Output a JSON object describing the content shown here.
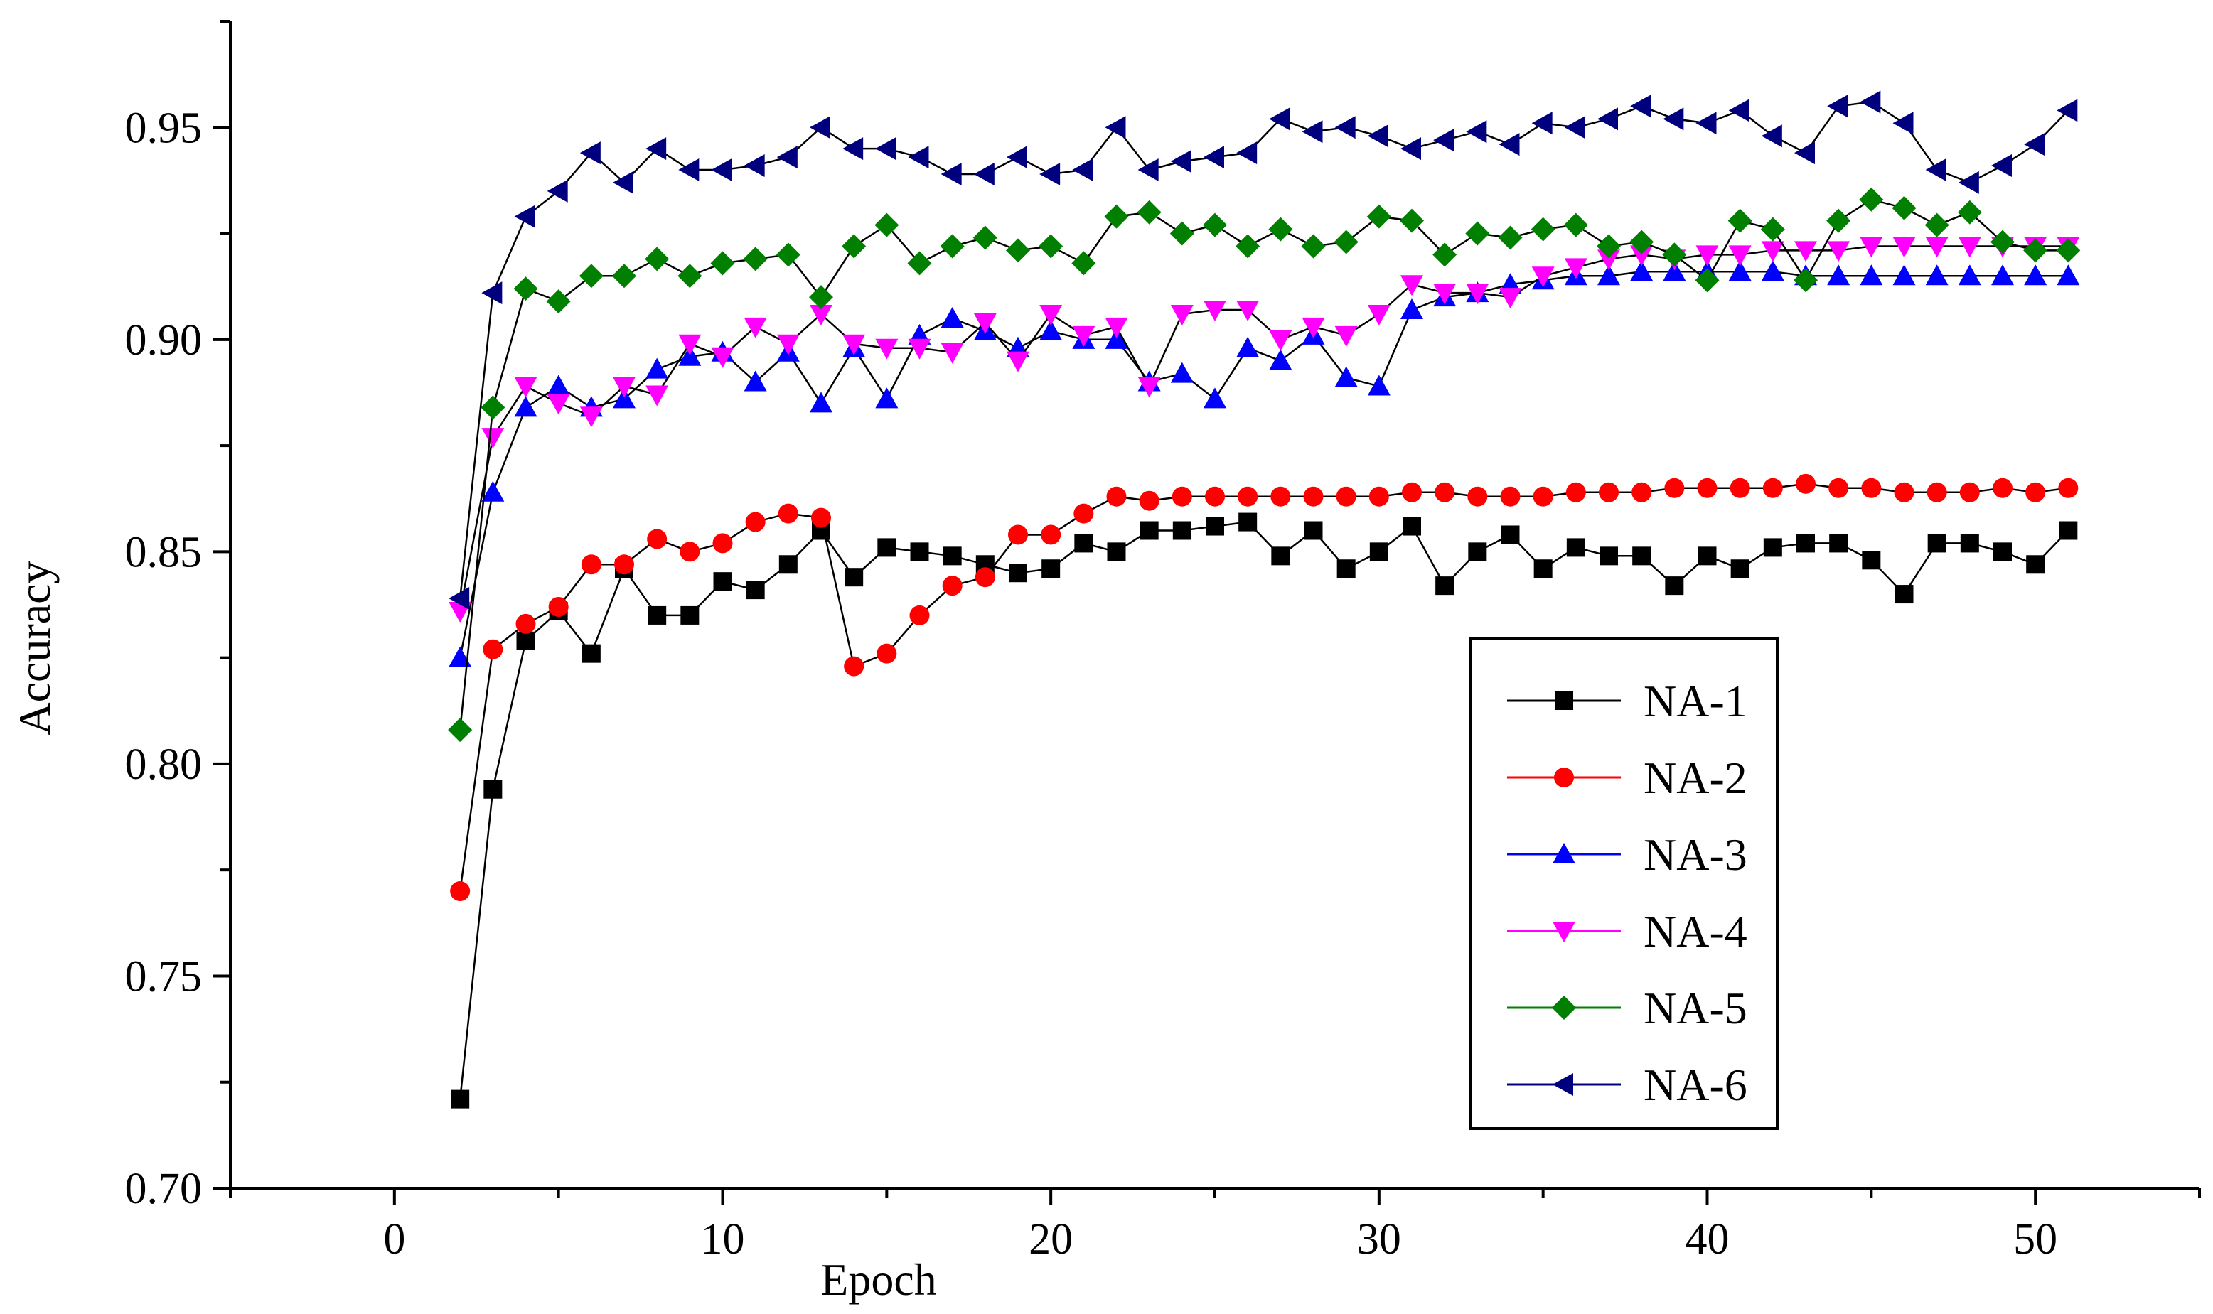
{
  "chart_data": {
    "type": "line",
    "title": "",
    "xlabel": "Epoch",
    "ylabel": "Accuracy",
    "xlim": [
      -5,
      55
    ],
    "ylim": [
      0.7,
      0.975
    ],
    "xticks": [
      0,
      10,
      20,
      30,
      40,
      50
    ],
    "xtick_labels": [
      "0",
      "10",
      "20",
      "30",
      "40",
      "50"
    ],
    "yticks": [
      0.7,
      0.75,
      0.8,
      0.85,
      0.9,
      0.95
    ],
    "ytick_labels": [
      "0.70",
      "0.75",
      "0.80",
      "0.85",
      "0.90",
      "0.95"
    ],
    "grid": false,
    "legend_position": "bottom-right",
    "x": [
      2,
      3,
      4,
      5,
      6,
      7,
      8,
      9,
      10,
      11,
      12,
      13,
      14,
      15,
      16,
      17,
      18,
      19,
      20,
      21,
      22,
      23,
      24,
      25,
      26,
      27,
      28,
      29,
      30,
      31,
      32,
      33,
      34,
      35,
      36,
      37,
      38,
      39,
      40,
      41,
      42,
      43,
      44,
      45,
      46,
      47,
      48,
      49,
      50,
      51
    ],
    "series": [
      {
        "name": "NA-1",
        "color": "#000000",
        "marker": "square",
        "values": [
          0.721,
          0.794,
          0.829,
          0.836,
          0.826,
          0.846,
          0.835,
          0.835,
          0.843,
          0.841,
          0.847,
          0.855,
          0.844,
          0.851,
          0.85,
          0.849,
          0.847,
          0.845,
          0.846,
          0.852,
          0.85,
          0.855,
          0.855,
          0.856,
          0.857,
          0.849,
          0.855,
          0.846,
          0.85,
          0.856,
          0.842,
          0.85,
          0.854,
          0.846,
          0.851,
          0.849,
          0.849,
          0.842,
          0.849,
          0.846,
          0.851,
          0.852,
          0.852,
          0.848,
          0.84,
          0.852,
          0.852,
          0.85,
          0.847,
          0.855
        ]
      },
      {
        "name": "NA-2",
        "color": "#ff0000",
        "marker": "circle",
        "values": [
          0.77,
          0.827,
          0.833,
          0.837,
          0.847,
          0.847,
          0.853,
          0.85,
          0.852,
          0.857,
          0.859,
          0.858,
          0.823,
          0.826,
          0.835,
          0.842,
          0.844,
          0.854,
          0.854,
          0.859,
          0.863,
          0.862,
          0.863,
          0.863,
          0.863,
          0.863,
          0.863,
          0.863,
          0.863,
          0.864,
          0.864,
          0.863,
          0.863,
          0.863,
          0.864,
          0.864,
          0.864,
          0.865,
          0.865,
          0.865,
          0.865,
          0.866,
          0.865,
          0.865,
          0.864,
          0.864,
          0.864,
          0.865,
          0.864,
          0.865
        ]
      },
      {
        "name": "NA-3",
        "color": "#0000ff",
        "marker": "triangle-up",
        "values": [
          0.825,
          0.864,
          0.884,
          0.889,
          0.884,
          0.886,
          0.893,
          0.896,
          0.897,
          0.89,
          0.897,
          0.885,
          0.898,
          0.886,
          0.901,
          0.905,
          0.902,
          0.898,
          0.902,
          0.9,
          0.9,
          0.89,
          0.892,
          0.886,
          0.898,
          0.895,
          0.901,
          0.891,
          0.889,
          0.907,
          0.91,
          0.911,
          0.913,
          0.914,
          0.915,
          0.915,
          0.916,
          0.916,
          0.916,
          0.916,
          0.916,
          0.915,
          0.915,
          0.915,
          0.915,
          0.915,
          0.915,
          0.915,
          0.915,
          0.915
        ]
      },
      {
        "name": "NA-4",
        "color": "#ff00ff",
        "marker": "triangle-down",
        "values": [
          0.836,
          0.877,
          0.889,
          0.885,
          0.882,
          0.889,
          0.887,
          0.899,
          0.896,
          0.903,
          0.899,
          0.906,
          0.899,
          0.898,
          0.898,
          0.897,
          0.904,
          0.895,
          0.906,
          0.901,
          0.903,
          0.889,
          0.906,
          0.907,
          0.907,
          0.9,
          0.903,
          0.901,
          0.906,
          0.913,
          0.911,
          0.911,
          0.91,
          0.915,
          0.917,
          0.919,
          0.92,
          0.919,
          0.92,
          0.92,
          0.921,
          0.921,
          0.921,
          0.922,
          0.922,
          0.922,
          0.922,
          0.922,
          0.922,
          0.922
        ]
      },
      {
        "name": "NA-5",
        "color": "#007f00",
        "marker": "diamond",
        "values": [
          0.808,
          0.884,
          0.912,
          0.909,
          0.915,
          0.915,
          0.919,
          0.915,
          0.918,
          0.919,
          0.92,
          0.91,
          0.922,
          0.927,
          0.918,
          0.922,
          0.924,
          0.921,
          0.922,
          0.918,
          0.929,
          0.93,
          0.925,
          0.927,
          0.922,
          0.926,
          0.922,
          0.923,
          0.929,
          0.928,
          0.92,
          0.925,
          0.924,
          0.926,
          0.927,
          0.922,
          0.923,
          0.92,
          0.914,
          0.928,
          0.926,
          0.914,
          0.928,
          0.933,
          0.931,
          0.927,
          0.93,
          0.923,
          0.921,
          0.921
        ]
      },
      {
        "name": "NA-6",
        "color": "#00007f",
        "marker": "triangle-left",
        "values": [
          0.839,
          0.911,
          0.929,
          0.935,
          0.944,
          0.937,
          0.945,
          0.94,
          0.94,
          0.941,
          0.943,
          0.95,
          0.945,
          0.945,
          0.943,
          0.939,
          0.939,
          0.943,
          0.939,
          0.94,
          0.95,
          0.94,
          0.942,
          0.943,
          0.944,
          0.952,
          0.949,
          0.95,
          0.948,
          0.945,
          0.947,
          0.949,
          0.946,
          0.951,
          0.95,
          0.952,
          0.955,
          0.952,
          0.951,
          0.954,
          0.948,
          0.944,
          0.955,
          0.956,
          0.951,
          0.94,
          0.937,
          0.941,
          0.946,
          0.954
        ]
      }
    ]
  }
}
